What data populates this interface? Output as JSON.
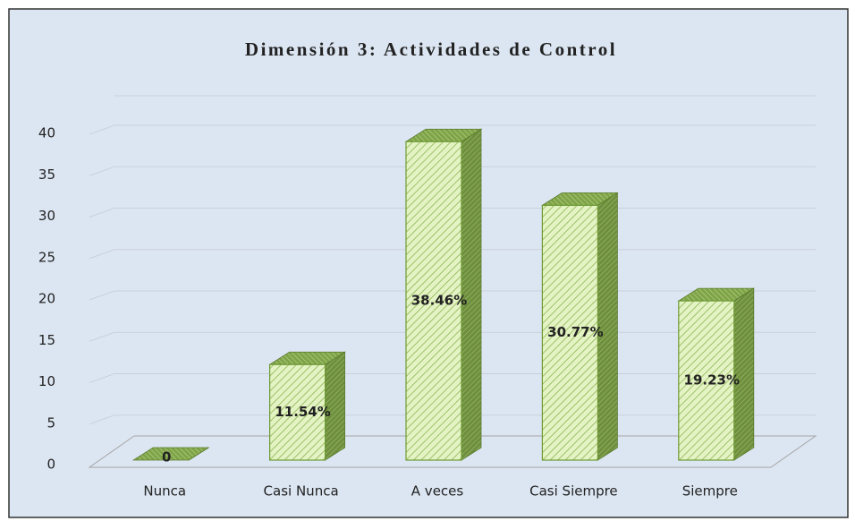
{
  "chart_data": {
    "type": "bar3d",
    "title": "Dimensión 3: Actividades de Control",
    "categories": [
      "Nunca",
      "Casi Nunca",
      "A veces",
      "Casi Siempre",
      "Siempre"
    ],
    "values": [
      0,
      11.54,
      38.46,
      30.77,
      19.23
    ],
    "value_labels": [
      "0",
      "11.54%",
      "38.46%",
      "30.77%",
      "19.23%"
    ],
    "color": "#e4f3c4",
    "ylim": [
      0,
      40
    ],
    "yticks": [
      0,
      5,
      10,
      15,
      20,
      25,
      30,
      35,
      40
    ],
    "grid": true
  }
}
